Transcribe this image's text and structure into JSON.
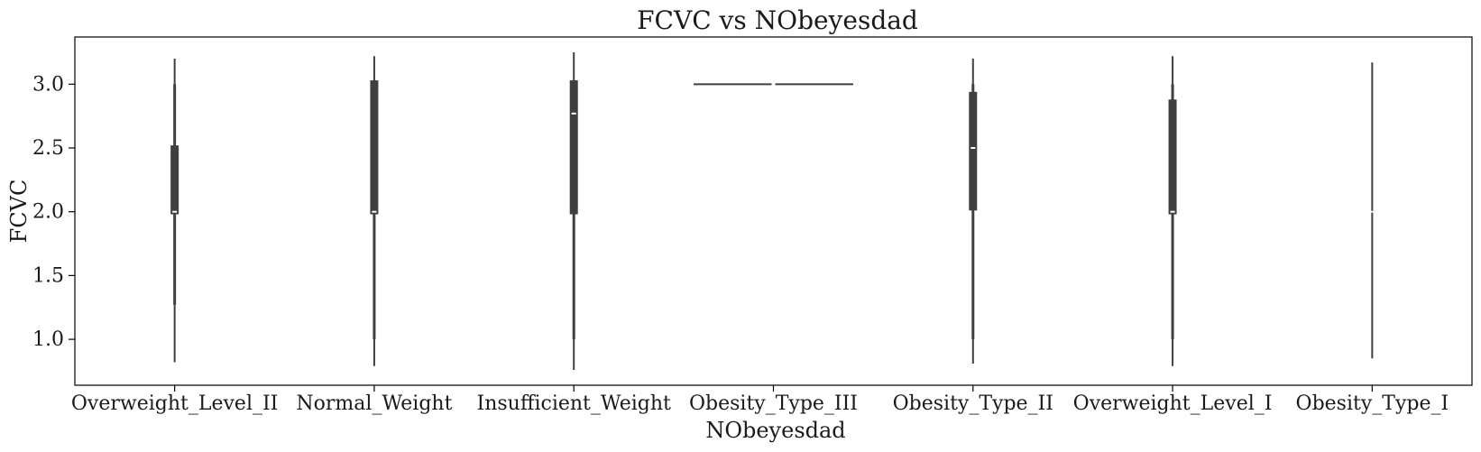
{
  "chart_data": {
    "type": "violin",
    "title": "FCVC vs NObeyesdad",
    "xlabel": "NObeyesdad",
    "ylabel": "FCVC",
    "ylim": [
      0.64,
      3.37
    ],
    "yticks": [
      1.0,
      1.5,
      2.0,
      2.5,
      3.0
    ],
    "ytick_labels": [
      "1.0",
      "1.5",
      "2.0",
      "2.5",
      "3.0"
    ],
    "grid": false,
    "categories": [
      "Overweight_Level_II",
      "Normal_Weight",
      "Insufficient_Weight",
      "Obesity_Type_III",
      "Obesity_Type_II",
      "Overweight_Level_I",
      "Obesity_Type_I"
    ],
    "distributions": [
      {
        "category": "Overweight_Level_II",
        "min": 0.82,
        "q1": 1.98,
        "median": 2.0,
        "q3": 2.52,
        "max": 3.2,
        "whisker_low": 1.27,
        "whisker_high": 3.0
      },
      {
        "category": "Normal_Weight",
        "min": 0.79,
        "q1": 1.98,
        "median": 2.0,
        "q3": 3.03,
        "max": 3.22,
        "whisker_low": 1.0,
        "whisker_high": 3.03
      },
      {
        "category": "Insufficient_Weight",
        "min": 0.76,
        "q1": 1.98,
        "median": 2.77,
        "q3": 3.03,
        "max": 3.25,
        "whisker_low": 1.0,
        "whisker_high": 3.03
      },
      {
        "category": "Obesity_Type_III",
        "min": 3.0,
        "q1": 3.0,
        "median": 3.0,
        "q3": 3.0,
        "max": 3.0,
        "whisker_low": 3.0,
        "whisker_high": 3.0
      },
      {
        "category": "Obesity_Type_II",
        "min": 0.81,
        "q1": 2.01,
        "median": 2.5,
        "q3": 2.94,
        "max": 3.2,
        "whisker_low": 1.0,
        "whisker_high": 3.0
      },
      {
        "category": "Overweight_Level_I",
        "min": 0.79,
        "q1": 1.98,
        "median": 2.0,
        "q3": 2.88,
        "max": 3.22,
        "whisker_low": 1.0,
        "whisker_high": 3.0
      },
      {
        "category": "Obesity_Type_I",
        "min": 0.85,
        "q1": 2.0,
        "median": 2.0,
        "q3": 2.0,
        "max": 3.17,
        "whisker_low": 2.0,
        "whisker_high": 2.0
      }
    ],
    "colors": {
      "mark": "#3f3f3f",
      "median": "#ffffff",
      "frame": "#000000"
    }
  }
}
